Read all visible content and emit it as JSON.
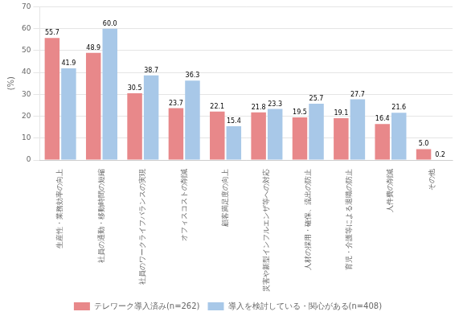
{
  "chart_data": {
    "type": "bar",
    "categories": [
      "生産性・業務効率の向上",
      "社員の通勤・移動時間の短縮",
      "社員のワークライフバランスの実現",
      "オフィスコストの削減",
      "顧客満足度の向上",
      "災害や新型インフルエンザ等への対応",
      "人材の採用・確保、流出の防止",
      "育児・介護等による退職の防止",
      "人件費の削減",
      "その他"
    ],
    "series": [
      {
        "name": "テレワーク導入済み(n=262)",
        "color": "#E8888A",
        "values": [
          55.7,
          48.9,
          30.5,
          23.7,
          22.1,
          21.8,
          19.5,
          19.1,
          16.4,
          5.0
        ],
        "value_labels": [
          "55.7",
          "48.9",
          "30.5",
          "23.7",
          "22.1",
          "21.8",
          "19.5",
          "19.1",
          "16.4",
          "5.0"
        ]
      },
      {
        "name": "導入を検討している・関心がある(n=408)",
        "color": "#A8C8E8",
        "values": [
          41.9,
          60.0,
          38.7,
          36.3,
          15.4,
          23.3,
          25.7,
          27.7,
          21.6,
          0.2
        ],
        "value_labels": [
          "41.9",
          "60.0",
          "38.7",
          "36.3",
          "15.4",
          "23.3",
          "25.7",
          "27.7",
          "21.6",
          "0.2"
        ]
      }
    ],
    "ylabel": "(%)",
    "ylim": [
      0,
      70
    ],
    "yticks": [
      0,
      10,
      20,
      30,
      40,
      50,
      60,
      70
    ],
    "grid": true,
    "legend": "bottom",
    "data_labels": true
  }
}
